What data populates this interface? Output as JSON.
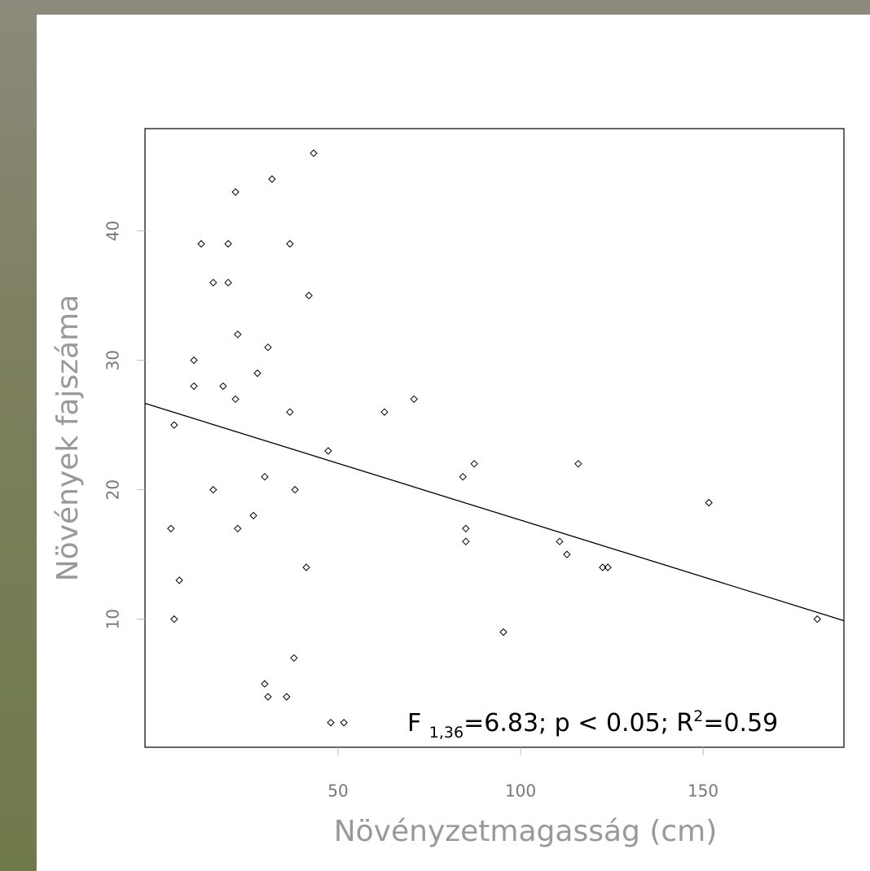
{
  "chart_data": {
    "type": "scatter",
    "xlabel": "Növényzetmagasság (cm)",
    "ylabel": "Növények fajszáma",
    "x": [
      4.2,
      5.1,
      5.1,
      6.5,
      10.5,
      10.5,
      12.5,
      15.8,
      15.8,
      18.5,
      19.9,
      19.9,
      21.9,
      21.9,
      22.5,
      22.5,
      26.8,
      27.9,
      29.9,
      29.9,
      30.8,
      30.8,
      31.9,
      35.9,
      36.8,
      36.8,
      37.9,
      38.2,
      41.3,
      42.0,
      43.3,
      47.3,
      48.0,
      51.6,
      62.7,
      70.8,
      84.2,
      85.0,
      85.0,
      87.3,
      95.3,
      110.7,
      112.7,
      115.8,
      122.5,
      123.9,
      151.6,
      181.3
    ],
    "values": [
      17,
      25,
      10,
      13,
      30,
      28,
      39,
      36,
      20,
      28,
      39,
      36,
      43,
      27,
      32,
      17,
      18,
      29,
      5,
      21,
      31,
      4,
      44,
      4,
      39,
      26,
      7,
      20,
      14,
      35,
      46,
      23,
      2,
      2,
      26,
      27,
      21,
      17,
      16,
      22,
      9,
      16,
      15,
      22,
      14,
      14,
      19,
      10
    ],
    "color": "#000000",
    "fit": {
      "intercept": 26.42,
      "slope": -0.0877
    },
    "xlim": [
      -2.9,
      188.6
    ],
    "ylim": [
      0.1,
      47.9
    ],
    "xticks": [
      50,
      100,
      150
    ],
    "yticks": [
      10,
      20,
      30,
      40
    ],
    "annotation": [
      "F ",
      "1,36",
      "=6.83; p < 0.05; R",
      "2",
      "=0.59"
    ]
  }
}
